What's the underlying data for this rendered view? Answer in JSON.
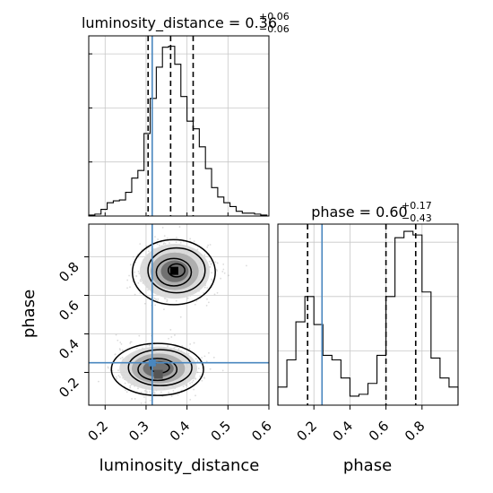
{
  "chart_data": [
    {
      "type": "histogram",
      "panel": "top-left",
      "title_param": "luminosity_distance",
      "title_value": "0.36",
      "title_plus": "+0.06",
      "title_minus": "−0.06",
      "xlim": [
        0.16,
        0.6
      ],
      "quantiles": [
        0.305,
        0.36,
        0.415
      ],
      "truth": 0.315,
      "bin_edges": [
        0.16,
        0.175,
        0.19,
        0.205,
        0.22,
        0.235,
        0.25,
        0.265,
        0.28,
        0.295,
        0.31,
        0.325,
        0.34,
        0.355,
        0.37,
        0.385,
        0.4,
        0.415,
        0.43,
        0.445,
        0.46,
        0.475,
        0.49,
        0.505,
        0.52,
        0.535,
        0.55,
        0.565,
        0.58,
        0.595
      ],
      "counts": [
        1,
        2,
        7,
        14,
        16,
        17,
        25,
        40,
        48,
        87,
        124,
        157,
        178,
        179,
        160,
        126,
        100,
        92,
        73,
        50,
        30,
        20,
        14,
        10,
        5,
        3,
        3,
        2,
        1
      ],
      "ymax": 190
    },
    {
      "type": "scatter-contour",
      "panel": "bottom-left",
      "xlabel": "luminosity_distance",
      "ylabel": "phase",
      "xlim": [
        0.16,
        0.6
      ],
      "ylim": [
        0.03,
        0.97
      ],
      "xticks": [
        "0.2",
        "0.3",
        "0.4",
        "0.5",
        "0.6"
      ],
      "xtick_values": [
        0.2,
        0.3,
        0.4,
        0.5,
        0.6
      ],
      "yticks": [
        "0.2",
        "0.4",
        "0.6",
        "0.8"
      ],
      "ytick_values": [
        0.2,
        0.4,
        0.6,
        0.8
      ],
      "truth": [
        0.315,
        0.25
      ],
      "modes": [
        {
          "center": [
            0.37,
            0.725
          ],
          "sd": [
            0.045,
            0.075
          ]
        },
        {
          "center": [
            0.33,
            0.22
          ],
          "sd": [
            0.05,
            0.06
          ]
        }
      ]
    },
    {
      "type": "histogram",
      "panel": "bottom-right",
      "title_param": "phase",
      "title_value": "0.60",
      "title_plus": "+0.17",
      "title_minus": "−0.43",
      "xlabel": "phase",
      "xlim": [
        0.0,
        1.0
      ],
      "xticks": [
        "0.2",
        "0.4",
        "0.6",
        "0.8"
      ],
      "xtick_values": [
        0.2,
        0.4,
        0.6,
        0.8
      ],
      "quantiles": [
        0.165,
        0.6,
        0.765
      ],
      "truth": 0.245,
      "bin_edges": [
        0.0,
        0.05,
        0.1,
        0.15,
        0.2,
        0.25,
        0.3,
        0.35,
        0.4,
        0.45,
        0.5,
        0.55,
        0.6,
        0.65,
        0.7,
        0.75,
        0.8,
        0.85,
        0.9,
        0.95,
        1.0
      ],
      "counts": [
        20,
        50,
        92,
        120,
        89,
        55,
        50,
        30,
        10,
        12,
        24,
        55,
        120,
        185,
        192,
        188,
        125,
        52,
        30,
        20
      ],
      "ymax": 200
    }
  ],
  "colors": {
    "truth": "#4a87bf",
    "hist": "#000000",
    "grid": "#c8c8c8",
    "scatter": "#9a9a9a"
  }
}
